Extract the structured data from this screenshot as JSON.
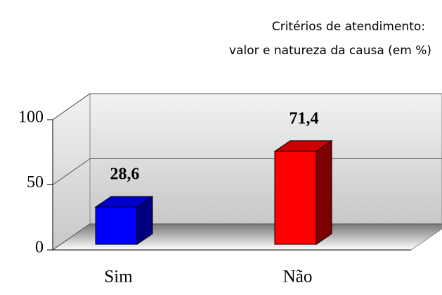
{
  "chart_data": {
    "type": "bar3d",
    "title": [
      "Critérios de atendimento:",
      "valor e natureza da causa (em %)"
    ],
    "categories": [
      "Sim",
      "Não"
    ],
    "values": [
      28.6,
      71.4
    ],
    "value_labels": [
      "28,6",
      "71,4"
    ],
    "colors": [
      "#0000ff",
      "#ff0000"
    ],
    "ylim": [
      0,
      100
    ],
    "yticks": [
      0,
      50,
      100
    ],
    "grid": true
  }
}
